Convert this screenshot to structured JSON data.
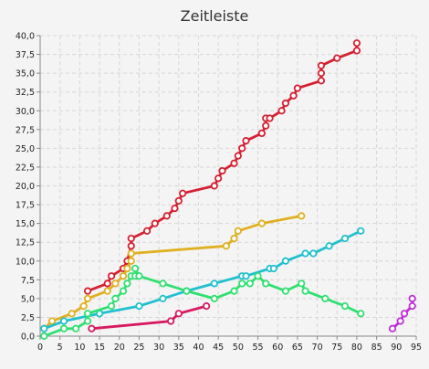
{
  "chart_data": {
    "type": "line",
    "title": "Zeitleiste",
    "xlabel": "",
    "ylabel": "",
    "xlim": [
      0,
      95
    ],
    "ylim": [
      0,
      40
    ],
    "x_ticks": [
      0,
      5,
      10,
      15,
      20,
      25,
      30,
      35,
      40,
      45,
      50,
      55,
      60,
      65,
      70,
      75,
      80,
      85,
      90,
      95
    ],
    "y_ticks": [
      "0,0",
      "2,5",
      "5,0",
      "7,5",
      "10,0",
      "12,5",
      "15,0",
      "17,5",
      "20,0",
      "22,5",
      "25,0",
      "27,5",
      "30,0",
      "32,5",
      "35,0",
      "37,5",
      "40,0"
    ],
    "grid": true,
    "legend": "none",
    "series": [
      {
        "color": "#d62030",
        "points": [
          [
            12,
            6
          ],
          [
            17,
            7
          ],
          [
            18,
            8
          ],
          [
            21,
            9
          ],
          [
            22,
            10
          ],
          [
            23,
            12
          ],
          [
            23,
            13
          ],
          [
            27,
            14
          ],
          [
            29,
            15
          ],
          [
            32,
            16
          ],
          [
            34,
            17
          ],
          [
            35,
            18
          ],
          [
            36,
            19
          ],
          [
            44,
            20
          ],
          [
            45,
            21
          ],
          [
            46,
            22
          ],
          [
            49,
            23
          ],
          [
            50,
            24
          ],
          [
            51,
            25
          ],
          [
            52,
            26
          ],
          [
            56,
            27
          ],
          [
            57,
            28
          ],
          [
            57,
            29
          ],
          [
            58,
            29
          ],
          [
            61,
            30
          ],
          [
            62,
            31
          ],
          [
            64,
            32
          ],
          [
            65,
            33
          ],
          [
            71,
            34
          ],
          [
            71,
            35
          ],
          [
            71,
            36
          ],
          [
            75,
            37
          ],
          [
            80,
            38
          ],
          [
            80,
            39
          ]
        ]
      },
      {
        "color": "#e0b020",
        "points": [
          [
            1,
            1
          ],
          [
            3,
            2
          ],
          [
            8,
            3
          ],
          [
            11,
            4
          ],
          [
            12,
            5
          ],
          [
            17,
            6
          ],
          [
            19,
            7
          ],
          [
            21,
            8
          ],
          [
            22,
            9
          ],
          [
            23,
            10
          ],
          [
            23,
            11
          ],
          [
            47,
            12
          ],
          [
            49,
            13
          ],
          [
            50,
            14
          ],
          [
            56,
            15
          ],
          [
            66,
            16
          ]
        ]
      },
      {
        "color": "#20c0d0",
        "points": [
          [
            1,
            1
          ],
          [
            6,
            2
          ],
          [
            15,
            3
          ],
          [
            25,
            4
          ],
          [
            31,
            5
          ],
          [
            37,
            6
          ],
          [
            44,
            7
          ],
          [
            51,
            8
          ],
          [
            52,
            8
          ],
          [
            58,
            9
          ],
          [
            59,
            9
          ],
          [
            62,
            10
          ],
          [
            67,
            11
          ],
          [
            69,
            11
          ],
          [
            73,
            12
          ],
          [
            77,
            13
          ],
          [
            81,
            14
          ]
        ]
      },
      {
        "color": "#30e070",
        "points": [
          [
            1,
            0
          ],
          [
            6,
            1
          ],
          [
            9,
            1
          ],
          [
            12,
            2
          ],
          [
            12,
            3
          ],
          [
            18,
            4
          ],
          [
            19,
            5
          ],
          [
            21,
            6
          ],
          [
            22,
            7
          ],
          [
            23,
            8
          ],
          [
            24,
            8
          ],
          [
            24,
            9
          ],
          [
            25,
            8
          ],
          [
            31,
            7
          ],
          [
            37,
            6
          ],
          [
            44,
            5
          ],
          [
            49,
            6
          ],
          [
            51,
            7
          ],
          [
            53,
            7
          ],
          [
            55,
            8
          ],
          [
            57,
            7
          ],
          [
            62,
            6
          ],
          [
            66,
            7
          ],
          [
            67,
            6
          ],
          [
            72,
            5
          ],
          [
            77,
            4
          ],
          [
            81,
            3
          ]
        ]
      },
      {
        "color": "#d81860",
        "points": [
          [
            13,
            1
          ],
          [
            33,
            2
          ],
          [
            35,
            3
          ],
          [
            42,
            4
          ]
        ]
      },
      {
        "color": "#c030d8",
        "points": [
          [
            89,
            1
          ],
          [
            91,
            2
          ],
          [
            92,
            3
          ],
          [
            94,
            4
          ],
          [
            94,
            5
          ]
        ]
      }
    ]
  }
}
